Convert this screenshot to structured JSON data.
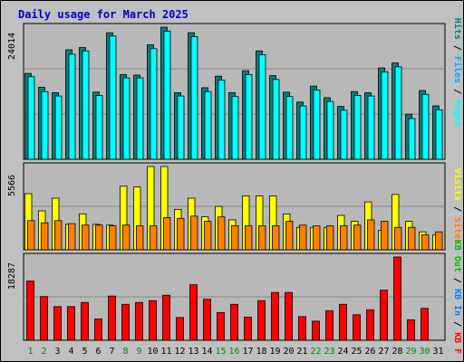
{
  "title": "Daily usage for March 2025",
  "colors": {
    "background": "#c0c0c0",
    "plot_bg": "#b8b8b8",
    "title": "#0000cc",
    "axis_text": "#000000",
    "weekend_day": "#008800",
    "hits": "#008080",
    "files": "#00aaff",
    "pages": "#00ffff",
    "visits": "#ffff00",
    "sites": "#ff8000",
    "kb_in": "#0080ff",
    "kb_out": "#00c000",
    "kb_f": "#ff0000"
  },
  "chart_data": [
    {
      "type": "bar",
      "id": "hits-files-pages",
      "categories": [
        "1",
        "2",
        "3",
        "4",
        "5",
        "6",
        "7",
        "8",
        "9",
        "10",
        "11",
        "12",
        "13",
        "14",
        "15",
        "16",
        "17",
        "18",
        "19",
        "20",
        "21",
        "22",
        "23",
        "24",
        "25",
        "26",
        "27",
        "28",
        "29",
        "30",
        "31"
      ],
      "y_max_label": "24014",
      "ylim": [
        0,
        24014
      ],
      "series": [
        {
          "name": "Hits",
          "color": "#008080",
          "values": [
            15600,
            13100,
            12100,
            19900,
            20300,
            12200,
            23000,
            15400,
            15300,
            20800,
            24014,
            12100,
            23000,
            13000,
            15100,
            12100,
            16100,
            19700,
            15200,
            12200,
            10400,
            13300,
            11200,
            9600,
            12300,
            12100,
            16600,
            17500,
            8200,
            12500,
            9700
          ]
        },
        {
          "name": "Files",
          "color": "#00aaff",
          "values": [
            15000,
            12300,
            11500,
            19100,
            19700,
            11600,
            22400,
            14800,
            14800,
            20100,
            23300,
            11500,
            22300,
            12300,
            14400,
            11400,
            15400,
            19000,
            14500,
            11400,
            9700,
            12600,
            10500,
            8900,
            11600,
            11500,
            15900,
            16800,
            7400,
            11800,
            9000
          ]
        },
        {
          "name": "Pages",
          "color": "#00ffff",
          "values": [
            15000,
            12300,
            11500,
            19100,
            19700,
            11600,
            22400,
            14800,
            14800,
            20100,
            23300,
            11500,
            22300,
            12300,
            14400,
            11400,
            15400,
            19000,
            14500,
            11400,
            9700,
            12600,
            10500,
            8900,
            11600,
            11500,
            15900,
            16800,
            7400,
            11800,
            9000
          ]
        }
      ],
      "legend": [
        "Pages",
        "Files",
        "Hits"
      ]
    },
    {
      "type": "bar",
      "id": "visits-sites",
      "categories": [
        "1",
        "2",
        "3",
        "4",
        "5",
        "6",
        "7",
        "8",
        "9",
        "10",
        "11",
        "12",
        "13",
        "14",
        "15",
        "16",
        "17",
        "18",
        "19",
        "20",
        "21",
        "22",
        "23",
        "24",
        "25",
        "26",
        "27",
        "28",
        "29",
        "30",
        "31"
      ],
      "y_max_label": "5566",
      "ylim": [
        0,
        5566
      ],
      "series": [
        {
          "name": "Visits",
          "color": "#ffff00",
          "values": [
            3750,
            2600,
            3450,
            1700,
            2400,
            1700,
            1650,
            4250,
            4200,
            5566,
            5566,
            2700,
            3450,
            2200,
            2900,
            2000,
            3600,
            3600,
            3600,
            2400,
            1500,
            1500,
            1500,
            2300,
            1900,
            3200,
            1300,
            3700,
            1900,
            1200,
            1000
          ]
        },
        {
          "name": "Sites",
          "color": "#ff8000",
          "values": [
            1950,
            1800,
            1950,
            1750,
            1650,
            1650,
            1600,
            1650,
            1600,
            1600,
            2150,
            2100,
            2250,
            1900,
            2200,
            1600,
            1600,
            1600,
            1600,
            1900,
            1650,
            1600,
            1600,
            1600,
            1650,
            2000,
            1900,
            1500,
            1500,
            1000,
            1200
          ]
        }
      ],
      "legend": [
        "Sites",
        "Visits"
      ]
    },
    {
      "type": "bar",
      "id": "kbytes",
      "categories": [
        "1",
        "2",
        "3",
        "4",
        "5",
        "6",
        "7",
        "8",
        "9",
        "10",
        "11",
        "12",
        "13",
        "14",
        "15",
        "16",
        "17",
        "18",
        "19",
        "20",
        "21",
        "22",
        "23",
        "24",
        "25",
        "26",
        "27",
        "28",
        "29",
        "30",
        "31"
      ],
      "y_max_label": "18287",
      "ylim": [
        0,
        18287
      ],
      "series": [
        {
          "name": "KB F",
          "color": "#ff0000",
          "values": [
            13000,
            9600,
            7400,
            7400,
            8300,
            4700,
            9700,
            7900,
            8300,
            8700,
            9900,
            5000,
            12200,
            9000,
            6100,
            7900,
            5100,
            8700,
            10500,
            10500,
            5200,
            4200,
            6500,
            7900,
            5600,
            6700,
            11000,
            18287,
            4500,
            7000,
            0
          ]
        }
      ],
      "legend": [
        "KB In",
        "KB Out",
        "KB F"
      ]
    }
  ],
  "legend_labels": {
    "pages": "Pages",
    "files": "Files",
    "hits": "Hits",
    "sites": "Sites",
    "visits": "Visits",
    "kb_f": "KB F",
    "kb_in": "KB In",
    "kb_out": "KB Out",
    "sep": " / "
  },
  "weekend_days": [
    "1",
    "2",
    "8",
    "9",
    "15",
    "16",
    "22",
    "23",
    "29",
    "30"
  ]
}
